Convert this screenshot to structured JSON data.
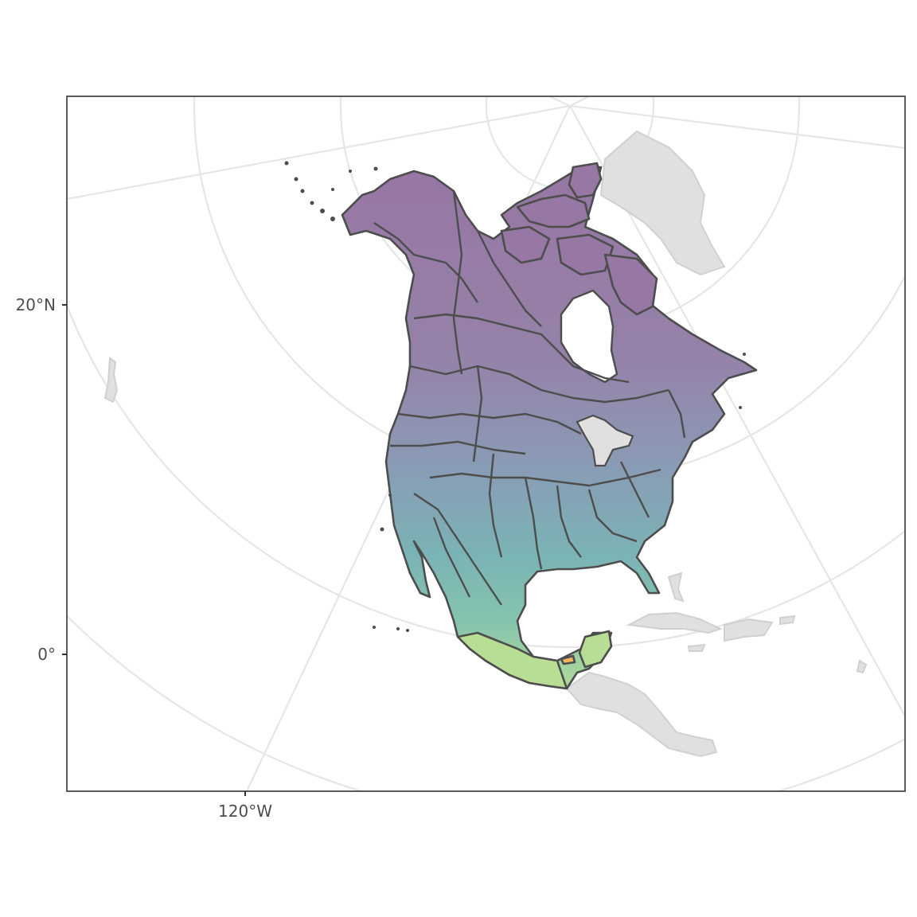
{
  "map": {
    "y_ticks": [
      {
        "value": 20,
        "label": "20°N"
      },
      {
        "value": 0,
        "label": "0°"
      }
    ],
    "x_ticks": [
      {
        "value": -120,
        "label": "120°W"
      }
    ],
    "colors": {
      "panel_border": "#333333",
      "graticule": "#e6e6e6",
      "context_land": "#e0e0e0",
      "boundary": "#4d4d4d",
      "north_fill": "#9a7aa6",
      "mid_fill": "#8a9bb5",
      "south_fill": "#7fbcb3",
      "tropical_fill": "#b8dd94",
      "highlight_fill": "#f2b65c"
    }
  }
}
